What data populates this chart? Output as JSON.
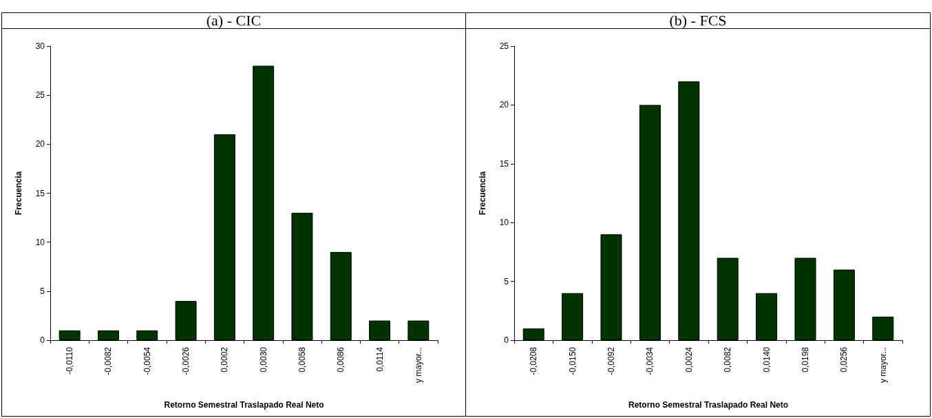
{
  "chart_data": [
    {
      "type": "bar",
      "title": "(a) - CIC",
      "xlabel": "Retorno Semestral Traslapado Real Neto",
      "ylabel": "Frecuencia",
      "categories": [
        "-0,0110",
        "-0,0082",
        "-0,0054",
        "-0,0026",
        "0,0002",
        "0,0030",
        "0,0058",
        "0,0086",
        "0,0114",
        "y mayor..."
      ],
      "series": [
        {
          "color": "#003300",
          "values": [
            1,
            1,
            1,
            4,
            21,
            28,
            13,
            9,
            2,
            2
          ]
        }
      ],
      "ylim": [
        0,
        30
      ],
      "yticks": [
        0,
        5,
        10,
        15,
        20,
        25,
        30
      ],
      "grid": false
    },
    {
      "type": "bar",
      "title": "(b) - FCS",
      "xlabel": "Retorno Semestral Traslapado Real Neto",
      "ylabel": "Frecuencia",
      "categories": [
        "-0,0208",
        "-0,0150",
        "-0,0092",
        "-0,0034",
        "0,0024",
        "0,0082",
        "0,0140",
        "0,0198",
        "0,0256",
        "y mayor..."
      ],
      "series": [
        {
          "color": "#003300",
          "values": [
            1,
            4,
            9,
            20,
            22,
            7,
            4,
            7,
            6,
            2
          ]
        }
      ],
      "ylim": [
        0,
        25
      ],
      "yticks": [
        0,
        5,
        10,
        15,
        20,
        25
      ],
      "grid": false
    }
  ]
}
